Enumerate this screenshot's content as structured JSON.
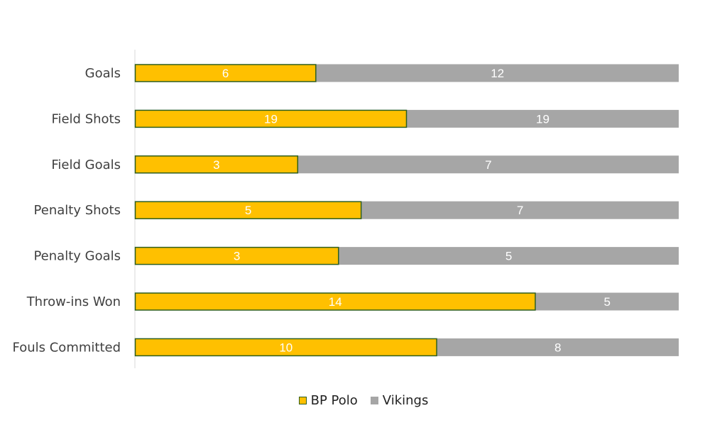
{
  "chart_data": {
    "type": "bar",
    "orientation": "horizontal",
    "stacked": "100%",
    "categories": [
      "Goals",
      "Field Shots",
      "Field Goals",
      "Penalty Shots",
      "Penalty Goals",
      "Throw-ins Won",
      "Fouls Committed"
    ],
    "series": [
      {
        "name": "BP Polo",
        "values": [
          6,
          19,
          3,
          5,
          3,
          14,
          10
        ],
        "color": "#FFC000",
        "border": "#2E5E1E"
      },
      {
        "name": "Vikings",
        "values": [
          12,
          19,
          7,
          7,
          5,
          5,
          8
        ],
        "color": "#A6A6A6"
      }
    ],
    "legend_position": "bottom",
    "grid": false
  }
}
